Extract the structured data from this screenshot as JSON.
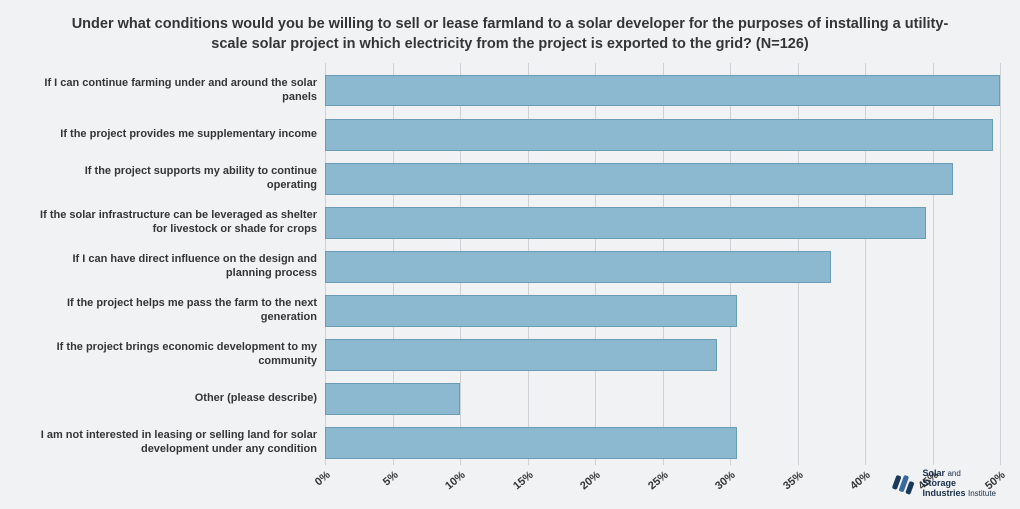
{
  "chart": {
    "type": "bar-horizontal",
    "title": "Under what conditions would you be willing to sell or lease farmland to a solar developer for the purposes of installing a utility-scale solar project in which electricity from the project is exported to the grid? (N=126)",
    "title_fontsize": 14.5,
    "title_color": "#333537",
    "background_color": "#f1f2f3",
    "bar_color": "#8cb8d0",
    "bar_border_color": "#6a9cb8",
    "grid_color": "#cfd2d5",
    "label_color": "#333537",
    "label_fontsize": 11,
    "label_fontweight": 700,
    "xlim": [
      0,
      50
    ],
    "xtick_step": 5,
    "xticks": [
      "0%",
      "5%",
      "10%",
      "15%",
      "20%",
      "25%",
      "30%",
      "35%",
      "40%",
      "45%",
      "50%"
    ],
    "categories": [
      "If I can continue farming under and around the solar panels",
      "If the project provides me supplementary income",
      "If the project supports my ability to continue operating",
      "If the solar infrastructure can be leveraged as shelter for livestock or shade for crops",
      "If I can have direct influence on the design and planning process",
      "If the project helps me pass the farm to the next generation",
      "If the project brings economic development to my community",
      "Other (please describe)",
      "I am not interested in leasing or selling land for solar development under any condition"
    ],
    "values": [
      50,
      49.5,
      46.5,
      44.5,
      37.5,
      30.5,
      29,
      10,
      30.5
    ]
  },
  "logo": {
    "line1a": "Solar",
    "line1b": "and",
    "line2": "Storage",
    "line3a": "Industries",
    "line3b": "Institute",
    "mark_color_dark": "#1a3a5c",
    "mark_color_light": "#3a6a9c"
  }
}
